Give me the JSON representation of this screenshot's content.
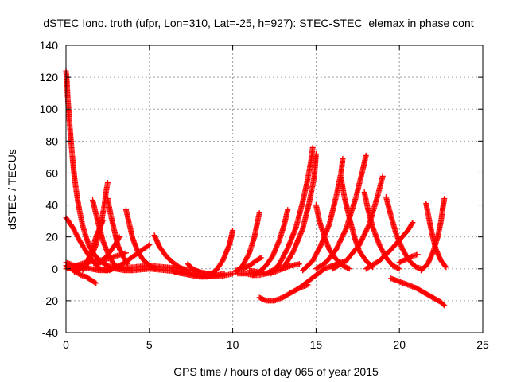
{
  "chart_data": {
    "type": "scatter",
    "title": "dSTEC Iono. truth (ufpr, Lon=310, Lat=-25, h=927): STEC-STEC_elemax in phase cont",
    "xlabel": "GPS time / hours of day 065 of year 2015",
    "ylabel": "dSTEC  / TECUs",
    "xlim": [
      0,
      25
    ],
    "ylim": [
      -40,
      140
    ],
    "xticks": [
      "0",
      "5",
      "10",
      "15",
      "20",
      "25"
    ],
    "yticks": [
      "-40",
      "-20",
      "0",
      "20",
      "40",
      "60",
      "80",
      "100",
      "120",
      "140"
    ],
    "grid": true,
    "marker": "plus",
    "color": "#ff0000",
    "arcs": [
      {
        "x": [
          0.0,
          0.05,
          0.1,
          0.2,
          0.3,
          0.4,
          0.5,
          0.6,
          0.7,
          0.8,
          0.9,
          1.0,
          1.2,
          1.4,
          1.7,
          2.0,
          2.5,
          3.0,
          3.5,
          4.0
        ],
        "y": [
          124,
          118,
          108,
          93,
          80,
          68,
          58,
          50,
          43,
          37,
          32,
          27,
          20,
          14,
          9,
          5,
          2,
          0,
          -1,
          -1
        ]
      },
      {
        "x": [
          0.0,
          0.3,
          0.6,
          0.9,
          1.2,
          1.5,
          1.8
        ],
        "y": [
          2,
          0,
          -2,
          -4,
          -5,
          -7,
          -9
        ]
      },
      {
        "x": [
          0.0,
          0.4,
          0.8,
          1.2,
          1.6,
          2.0,
          2.4,
          2.6
        ],
        "y": [
          32,
          26,
          18,
          11,
          5,
          0,
          -1,
          0
        ]
      },
      {
        "x": [
          0.0,
          0.5,
          1.0,
          1.5,
          2.0,
          2.5,
          2.8
        ],
        "y": [
          4,
          2,
          1,
          0,
          -1,
          -1,
          0
        ]
      },
      {
        "x": [
          0.0,
          0.6,
          1.2,
          1.8,
          2.4,
          3.0,
          3.6
        ],
        "y": [
          0,
          2,
          4,
          5,
          6,
          8,
          10
        ]
      },
      {
        "x": [
          0.5,
          0.9,
          1.3,
          1.6,
          1.8,
          2.0,
          2.2
        ],
        "y": [
          -2,
          0,
          5,
          13,
          20,
          25,
          30
        ]
      },
      {
        "x": [
          1.6,
          1.9,
          2.2,
          2.5,
          2.8,
          3.1
        ],
        "y": [
          43,
          30,
          18,
          10,
          4,
          1
        ]
      },
      {
        "x": [
          1.0,
          1.4,
          1.8,
          2.1,
          2.3,
          2.4,
          2.5
        ],
        "y": [
          -1,
          5,
          15,
          28,
          40,
          48,
          54
        ]
      },
      {
        "x": [
          2.5,
          2.7,
          2.9,
          3.1,
          3.4,
          3.7
        ],
        "y": [
          44,
          33,
          24,
          15,
          8,
          3
        ]
      },
      {
        "x": [
          1.8,
          2.2,
          2.6,
          3.0,
          3.2
        ],
        "y": [
          2,
          5,
          10,
          16,
          20
        ]
      },
      {
        "x": [
          3.6,
          3.8,
          4.0,
          4.3,
          4.6,
          5.0,
          5.4
        ],
        "y": [
          37,
          28,
          19,
          11,
          6,
          2,
          0
        ]
      },
      {
        "x": [
          2.6,
          3.0,
          3.4,
          3.8,
          4.2,
          4.6,
          5.0
        ],
        "y": [
          -1,
          1,
          3,
          6,
          9,
          12,
          15
        ]
      },
      {
        "x": [
          5.3,
          5.6,
          6.0,
          6.4,
          6.8,
          7.2
        ],
        "y": [
          21,
          14,
          8,
          4,
          1,
          -1
        ]
      },
      {
        "x": [
          3.0,
          4.0,
          5.0,
          6.0,
          7.0,
          8.0,
          9.0
        ],
        "y": [
          0,
          1,
          2,
          1,
          0,
          -2,
          -4
        ]
      },
      {
        "x": [
          4.0,
          5.0,
          6.0,
          7.0,
          8.0,
          9.0,
          9.6,
          10.0
        ],
        "y": [
          -1,
          0,
          -1,
          -2,
          -4,
          -5,
          -4,
          -3
        ]
      },
      {
        "x": [
          6.5,
          7.0,
          7.5,
          8.0,
          8.5,
          9.0,
          9.5
        ],
        "y": [
          -2,
          -3,
          -4,
          -5,
          -5,
          -4,
          -3
        ]
      },
      {
        "x": [
          7.3,
          7.6,
          8.0,
          8.4,
          8.8
        ],
        "y": [
          3,
          0,
          -2,
          -3,
          -3
        ]
      },
      {
        "x": [
          8.2,
          8.6,
          9.0,
          9.4,
          9.8,
          10.0
        ],
        "y": [
          -5,
          -4,
          -1,
          5,
          15,
          24
        ]
      },
      {
        "x": [
          10.2,
          10.6,
          11.0,
          11.4,
          11.7
        ],
        "y": [
          -1,
          0,
          2,
          5,
          7
        ]
      },
      {
        "x": [
          10.3,
          10.8,
          11.2,
          11.6,
          12.0,
          12.4,
          12.8
        ],
        "y": [
          -3,
          -3,
          -4,
          -4,
          -3,
          -1,
          2
        ]
      },
      {
        "x": [
          11.0,
          11.5,
          12.0,
          12.5,
          13.0,
          13.5,
          14.0
        ],
        "y": [
          -1,
          -2,
          -3,
          -2,
          0,
          2,
          3
        ]
      },
      {
        "x": [
          11.6,
          12.0,
          12.5,
          13.0,
          13.5,
          14.0,
          14.5
        ],
        "y": [
          -18,
          -20,
          -20,
          -18,
          -15,
          -12,
          -10
        ]
      },
      {
        "x": [
          10.2,
          10.6,
          11.0,
          11.3,
          11.5,
          11.6
        ],
        "y": [
          -2,
          2,
          10,
          20,
          30,
          35
        ]
      },
      {
        "x": [
          11.2,
          11.6,
          12.0,
          12.4,
          12.8,
          13.1,
          13.3
        ],
        "y": [
          -4,
          -2,
          2,
          8,
          18,
          28,
          37
        ]
      },
      {
        "x": [
          12.3,
          12.8,
          13.3,
          13.8,
          14.2,
          14.5,
          14.7,
          14.8
        ],
        "y": [
          -3,
          3,
          13,
          26,
          42,
          56,
          68,
          76
        ]
      },
      {
        "x": [
          13.0,
          13.6,
          14.2,
          14.6,
          14.9,
          15.0
        ],
        "y": [
          0,
          10,
          25,
          42,
          58,
          72
        ]
      },
      {
        "x": [
          14.0,
          14.5,
          15.0,
          15.5,
          16.0,
          16.5,
          16.8
        ],
        "y": [
          -12,
          -8,
          -4,
          0,
          2,
          4,
          5
        ]
      },
      {
        "x": [
          15.0,
          15.2,
          15.5,
          15.8,
          16.2,
          16.6,
          17.0
        ],
        "y": [
          40,
          30,
          20,
          12,
          6,
          2,
          0
        ]
      },
      {
        "x": [
          14.2,
          14.8,
          15.3,
          15.8,
          16.2,
          16.5,
          16.6
        ],
        "y": [
          -1,
          5,
          15,
          28,
          45,
          60,
          69
        ]
      },
      {
        "x": [
          16.5,
          16.7,
          17.0,
          17.3,
          17.6,
          18.0,
          18.4
        ],
        "y": [
          57,
          45,
          32,
          20,
          11,
          5,
          1
        ]
      },
      {
        "x": [
          15.0,
          15.6,
          16.2,
          16.8,
          17.4,
          17.8,
          18.0
        ],
        "y": [
          0,
          4,
          12,
          25,
          45,
          62,
          71
        ]
      },
      {
        "x": [
          17.9,
          18.1,
          18.4,
          18.8,
          19.2,
          19.6,
          20.0
        ],
        "y": [
          48,
          38,
          26,
          15,
          7,
          2,
          0
        ]
      },
      {
        "x": [
          16.0,
          16.8,
          17.6,
          18.2,
          18.7,
          19.0
        ],
        "y": [
          0,
          5,
          15,
          28,
          46,
          58
        ]
      },
      {
        "x": [
          19.2,
          19.5,
          19.8,
          20.2,
          20.6,
          21.0,
          21.4
        ],
        "y": [
          45,
          33,
          22,
          12,
          5,
          1,
          0
        ]
      },
      {
        "x": [
          18.0,
          18.8,
          19.5,
          20.0,
          20.5,
          20.8
        ],
        "y": [
          0,
          5,
          12,
          18,
          24,
          29
        ]
      },
      {
        "x": [
          19.5,
          20.0,
          20.5,
          21.0,
          21.5,
          22.0,
          22.5,
          22.7
        ],
        "y": [
          -6,
          -8,
          -10,
          -12,
          -15,
          -18,
          -21,
          -23
        ]
      },
      {
        "x": [
          20.0,
          20.4,
          20.8,
          21.1
        ],
        "y": [
          4,
          6,
          8,
          9
        ]
      },
      {
        "x": [
          21.6,
          21.8,
          22.0,
          22.2,
          22.5,
          22.8
        ],
        "y": [
          41,
          30,
          20,
          12,
          5,
          1
        ]
      },
      {
        "x": [
          21.3,
          21.7,
          22.0,
          22.3,
          22.5,
          22.6,
          22.7
        ],
        "y": [
          -1,
          3,
          10,
          20,
          30,
          38,
          44
        ]
      }
    ]
  }
}
